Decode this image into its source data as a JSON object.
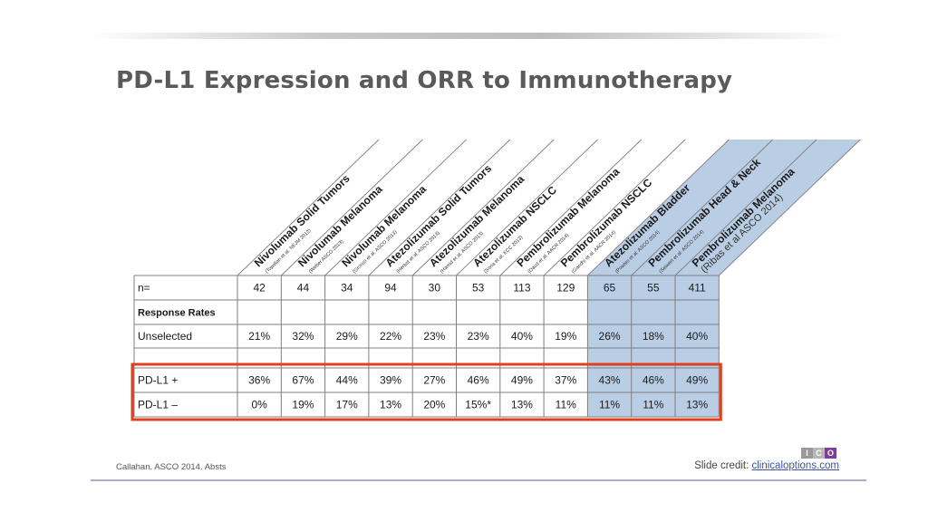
{
  "title": "PD-L1 Expression and ORR to Immunotherapy",
  "citation": "Callahan. ASCO 2014. Absts",
  "credit": {
    "prefix": "Slide credit: ",
    "link": "clinicaloptions.com"
  },
  "logo": {
    "letters": [
      "I",
      "C",
      "O"
    ],
    "colors": [
      "#9a9a9a",
      "#b7b7b7",
      "#7b3f98"
    ]
  },
  "colors": {
    "highlight_fill": "#b9cde5",
    "highlight_border": "#e0401e",
    "grid": "#7f7f7f"
  },
  "chart_data": {
    "type": "table",
    "columns": [
      {
        "name": "Nivolumab Solid Tumors",
        "source": "(Topalian et al. NEJM 2012)",
        "highlight": false
      },
      {
        "name": "Nivolumab Melanoma",
        "source": "(Weber ASCO 2013)",
        "highlight": false
      },
      {
        "name": "Nivolumab Melanoma",
        "source": "(Grosso et al. ASCO 2013)",
        "highlight": false
      },
      {
        "name": "Atezolizumab Solid Tumors",
        "source": "(Herbst et al. ASCO 2013)",
        "highlight": false
      },
      {
        "name": "Atezolizumab Melanoma",
        "source": "(Hamid et al. ASCO 2013)",
        "highlight": false
      },
      {
        "name": "Atezolizumab NSCLC",
        "source": "(Soria et al. ECC 2013)",
        "highlight": false
      },
      {
        "name": "Pembrolizumab Melanoma",
        "source": "(Daud et al. AACR 2014)",
        "highlight": false
      },
      {
        "name": "Pembrolizumab NSCLC",
        "source": "(Gandhi et al. AACR 2014)",
        "highlight": false
      },
      {
        "name": "Atezolizumab Bladder",
        "source": "(Powles et al. ASCO 2014)",
        "highlight": true
      },
      {
        "name": "Pembrolizumab Head & Neck",
        "source": "(Seiwert et al. ASCO 2014)",
        "highlight": true
      },
      {
        "name": "Pembrolizumab Melanoma",
        "source": "(Ribas et al ASCO 2014)",
        "highlight": true
      }
    ],
    "rows": [
      {
        "label": "n=",
        "bold": false,
        "values": [
          "42",
          "44",
          "34",
          "94",
          "30",
          "53",
          "113",
          "129",
          "65",
          "55",
          "411"
        ]
      },
      {
        "label": "Response Rates",
        "bold": true,
        "values": [
          "",
          "",
          "",
          "",
          "",
          "",
          "",
          "",
          "",
          "",
          ""
        ]
      },
      {
        "label": "Unselected",
        "bold": false,
        "values": [
          "21%",
          "32%",
          "29%",
          "22%",
          "23%",
          "23%",
          "40%",
          "19%",
          "26%",
          "18%",
          "40%"
        ]
      },
      {
        "label": "",
        "bold": false,
        "values": [
          "",
          "",
          "",
          "",
          "",
          "",
          "",
          "",
          "",
          "",
          ""
        ]
      },
      {
        "label": "PD-L1 +",
        "bold": false,
        "values": [
          "36%",
          "67%",
          "44%",
          "39%",
          "27%",
          "46%",
          "49%",
          "37%",
          "43%",
          "46%",
          "49%"
        ]
      },
      {
        "label": "PD-L1 –",
        "bold": false,
        "values": [
          "0%",
          "19%",
          "17%",
          "13%",
          "20%",
          "15%*",
          "13%",
          "11%",
          "11%",
          "11%",
          "13%"
        ]
      }
    ],
    "outlined_rows": [
      4,
      5
    ]
  }
}
